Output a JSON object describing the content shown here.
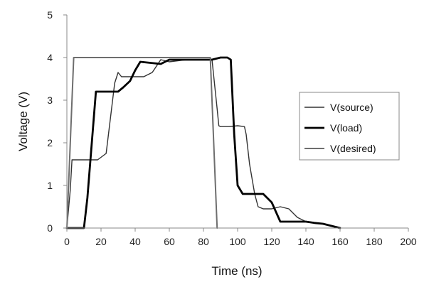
{
  "chart_data": {
    "type": "line",
    "title": "",
    "xlabel": "Time (ns)",
    "ylabel": "Voltage (V)",
    "xlim": [
      0,
      200
    ],
    "ylim": [
      0,
      5
    ],
    "xticks": [
      "0",
      "20",
      "40",
      "60",
      "80",
      "100",
      "120",
      "140",
      "160",
      "180",
      "200"
    ],
    "yticks": [
      "0",
      "1",
      "2",
      "3",
      "4",
      "5"
    ],
    "grid": false,
    "legend_position": "right",
    "series": [
      {
        "name": "V(source)",
        "color": "#333333",
        "stroke": 1.4,
        "x": [
          0,
          2,
          3,
          18,
          23,
          28,
          30,
          32,
          34,
          40,
          45,
          50,
          55,
          60,
          70,
          80,
          85,
          88,
          89,
          90,
          95,
          100,
          104,
          105,
          107,
          110,
          112,
          115,
          120,
          125,
          130,
          135,
          140,
          150,
          160
        ],
        "y": [
          0,
          0.9,
          1.6,
          1.6,
          1.75,
          3.4,
          3.65,
          3.55,
          3.55,
          3.55,
          3.55,
          3.65,
          3.95,
          3.9,
          3.95,
          3.95,
          3.95,
          2.8,
          2.4,
          2.38,
          2.38,
          2.4,
          2.38,
          2.2,
          1.5,
          0.8,
          0.5,
          0.45,
          0.45,
          0.5,
          0.45,
          0.25,
          0.15,
          0.1,
          0
        ]
      },
      {
        "name": "V(load)",
        "color": "#000000",
        "stroke": 2.8,
        "x": [
          0,
          10,
          12,
          17,
          25,
          30,
          33,
          37,
          40,
          43,
          55,
          60,
          75,
          85,
          90,
          94,
          96,
          98,
          100,
          103,
          107,
          110,
          115,
          120,
          125,
          130,
          140,
          145,
          150,
          155,
          160
        ],
        "y": [
          0,
          0,
          0.7,
          3.2,
          3.2,
          3.2,
          3.3,
          3.45,
          3.7,
          3.9,
          3.85,
          3.95,
          3.95,
          3.95,
          4.0,
          4.0,
          3.95,
          2.2,
          1.0,
          0.8,
          0.8,
          0.8,
          0.8,
          0.6,
          0.15,
          0.15,
          0.15,
          0.12,
          0.1,
          0.05,
          0
        ]
      },
      {
        "name": "V(desired)",
        "color": "#6e6e6e",
        "stroke": 2,
        "x": [
          0,
          4,
          10,
          84,
          86,
          88
        ],
        "y": [
          0,
          4,
          4,
          4,
          2.0,
          0
        ]
      }
    ]
  }
}
